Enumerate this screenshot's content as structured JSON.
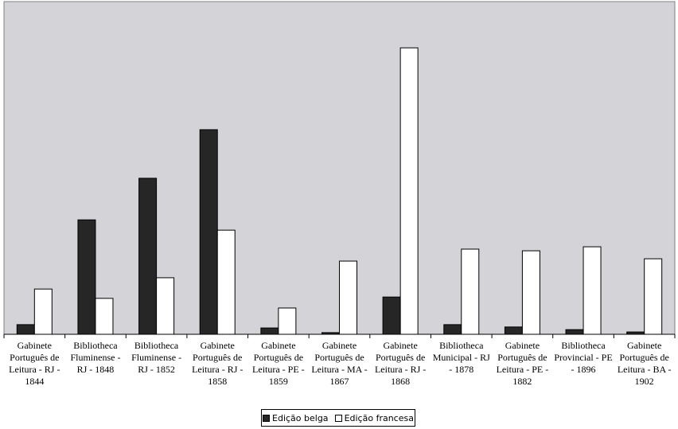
{
  "chart_data": {
    "type": "bar",
    "categories": [
      "Gabinete Português de Leitura - RJ - 1844",
      "Bibliotheca Fluminense - RJ - 1848",
      "Bibliotheca Fluminense - RJ - 1852",
      "Gabinete Português de Leitura - RJ - 1858",
      "Gabinete Português de Leitura - PE - 1859",
      "Gabinete Português de Leitura - MA - 1867",
      "Gabinete Português de Leitura - RJ - 1868",
      "Bibliotheca Municipal - RJ - 1878",
      "Gabinete Português de Leitura - PE - 1882",
      "Bibliotheca Provincial - PE - 1896",
      "Gabinete Português de Leitura - BA - 1902"
    ],
    "series": [
      {
        "name": "Edição belga",
        "color": "#262626",
        "values": [
          2.9,
          34.4,
          46.9,
          61.5,
          1.9,
          0.5,
          11.2,
          2.9,
          2.2,
          1.4,
          0.7
        ]
      },
      {
        "name": "Edição francesa",
        "color": "#ffffff",
        "values": [
          13.6,
          10.8,
          17.0,
          31.3,
          7.9,
          22.0,
          86.1,
          25.6,
          25.1,
          26.3,
          22.7
        ]
      }
    ],
    "ylim": [
      0,
      100
    ],
    "legend": "bottom",
    "background": "#d4d4d8"
  }
}
